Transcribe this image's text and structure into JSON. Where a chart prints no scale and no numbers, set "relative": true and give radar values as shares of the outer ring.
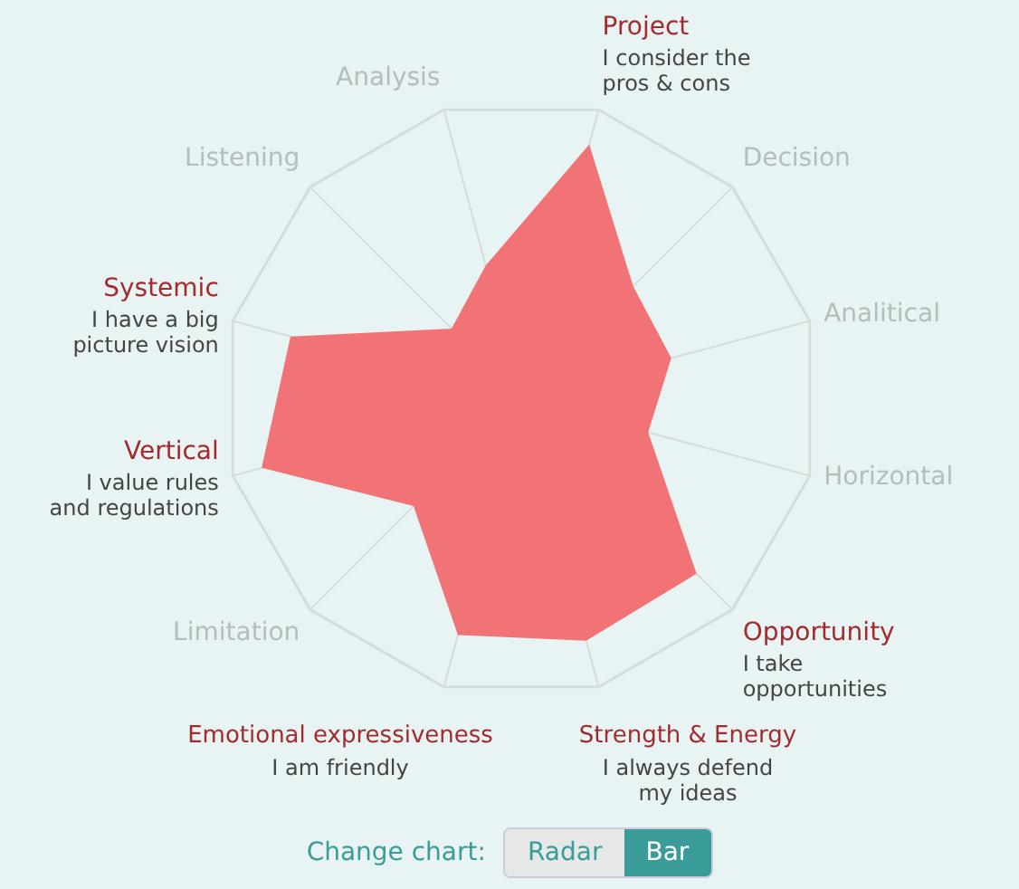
{
  "chart_data": {
    "type": "radar",
    "relative": true,
    "categories": [
      "Project",
      "Decision",
      "Analitical",
      "Horizontal",
      "Opportunity",
      "Strength & Energy",
      "Emotional expressiveness",
      "Limitation",
      "Vertical",
      "Systemic",
      "Listening",
      "Analysis"
    ],
    "series": [
      {
        "color": "#f17375",
        "values": [
          0.88,
          0.53,
          0.52,
          0.44,
          0.83,
          0.84,
          0.82,
          0.51,
          0.9,
          0.8,
          0.33,
          0.46
        ]
      }
    ],
    "annotations": [
      {
        "text": "I consider the pros & cons",
        "x": "Project"
      },
      {
        "text": "I take opportunities",
        "x": "Opportunity"
      },
      {
        "text": "I always defend my ideas",
        "x": "Strength & Energy"
      },
      {
        "text": "I am friendly",
        "x": "Emotional expressiveness"
      },
      {
        "text": "I value rules and regulations",
        "x": "Vertical"
      },
      {
        "text": "I have a big picture vision",
        "x": "Systemic"
      },
      "Change chart:",
      "Radar",
      "Bar"
    ]
  }
}
